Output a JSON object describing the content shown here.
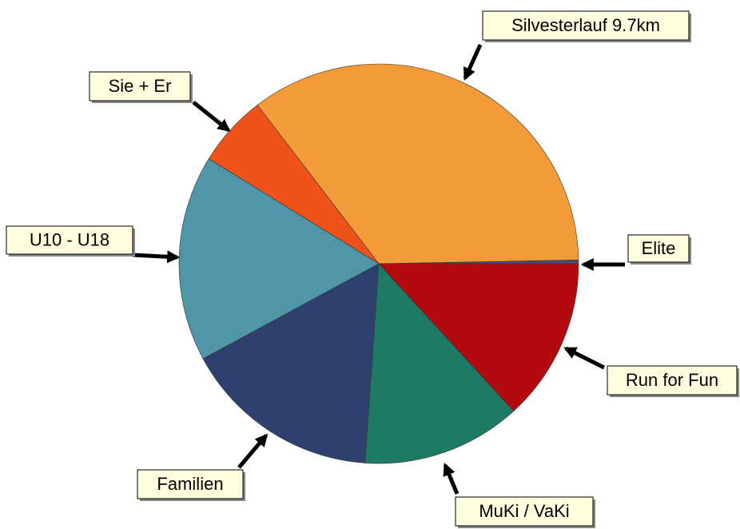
{
  "chart_data": {
    "type": "pie",
    "categories": [
      "Elite",
      "Silvesterlauf 9.7km",
      "Sie + Er",
      "U10 - U18",
      "Familien",
      "MuKi / VaKi",
      "Run for Fun"
    ],
    "values": [
      0.3,
      35.1,
      5.8,
      16.7,
      16.0,
      12.9,
      13.2
    ],
    "colors": [
      "#4a4a7a",
      "#f29b38",
      "#ef5319",
      "#4f97a8",
      "#2e406d",
      "#1f7a65",
      "#b30a10"
    ]
  }
}
